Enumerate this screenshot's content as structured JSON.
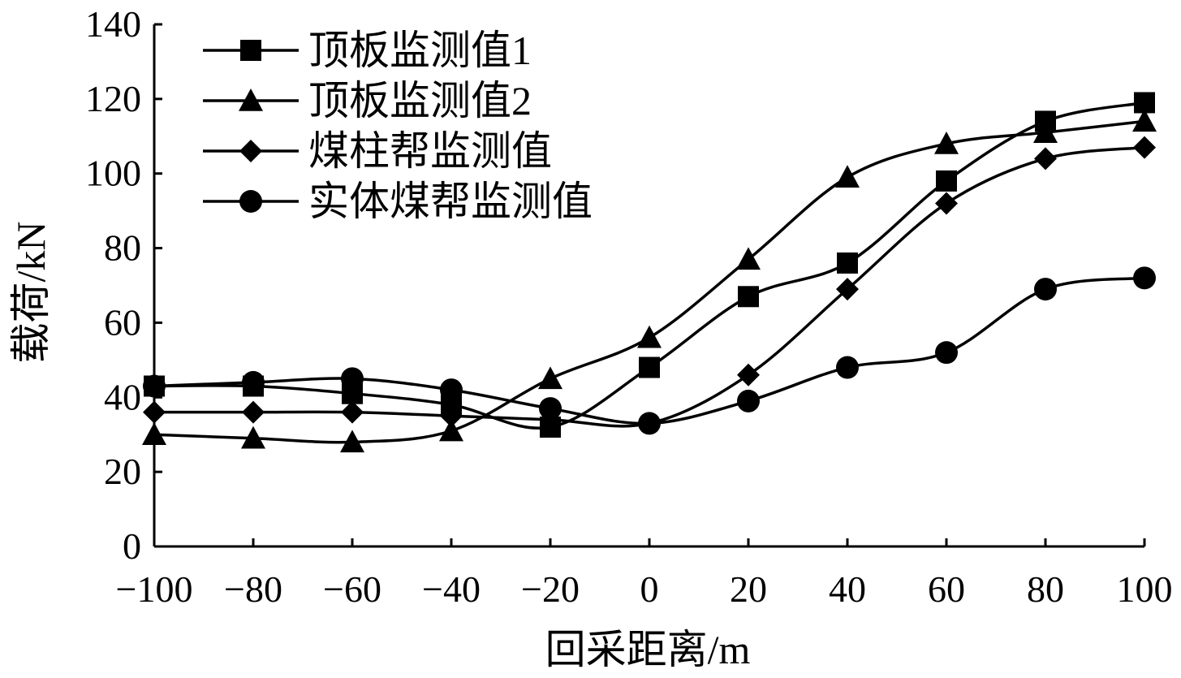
{
  "chart_data": {
    "type": "line",
    "xlabel": "回采距离/m",
    "ylabel": "载荷/kN",
    "xlim": [
      -100,
      100
    ],
    "ylim": [
      0,
      140
    ],
    "x_ticks": [
      -100,
      -80,
      -60,
      -40,
      -20,
      0,
      20,
      40,
      60,
      80,
      100
    ],
    "x_tick_labels": [
      "−100",
      "−80",
      "−60",
      "−40",
      "−20",
      "0",
      "20",
      "40",
      "60",
      "80",
      "100"
    ],
    "y_ticks": [
      0,
      20,
      40,
      60,
      80,
      100,
      120,
      140
    ],
    "y_tick_labels": [
      "0",
      "20",
      "40",
      "60",
      "80",
      "100",
      "120",
      "140"
    ],
    "grid": false,
    "legend_position": "top-left",
    "smooth_lines": true,
    "line_color": "#000000",
    "x": [
      -100,
      -80,
      -60,
      -40,
      -20,
      0,
      20,
      40,
      60,
      80,
      100
    ],
    "series": [
      {
        "name": "顶板监测值1",
        "marker": "square",
        "values": [
          43,
          43,
          41,
          38,
          32,
          48,
          67,
          76,
          98,
          114,
          119
        ]
      },
      {
        "name": "顶板监测值2",
        "marker": "triangle",
        "values": [
          30,
          29,
          28,
          31,
          45,
          56,
          77,
          99,
          108,
          111,
          114
        ]
      },
      {
        "name": "煤柱帮监测值",
        "marker": "diamond",
        "values": [
          36,
          36,
          36,
          35,
          34,
          33,
          46,
          69,
          92,
          104,
          107
        ]
      },
      {
        "name": "实体煤帮监测值",
        "marker": "circle",
        "values": [
          43,
          44,
          45,
          42,
          37,
          33,
          39,
          48,
          52,
          69,
          72
        ]
      }
    ]
  }
}
